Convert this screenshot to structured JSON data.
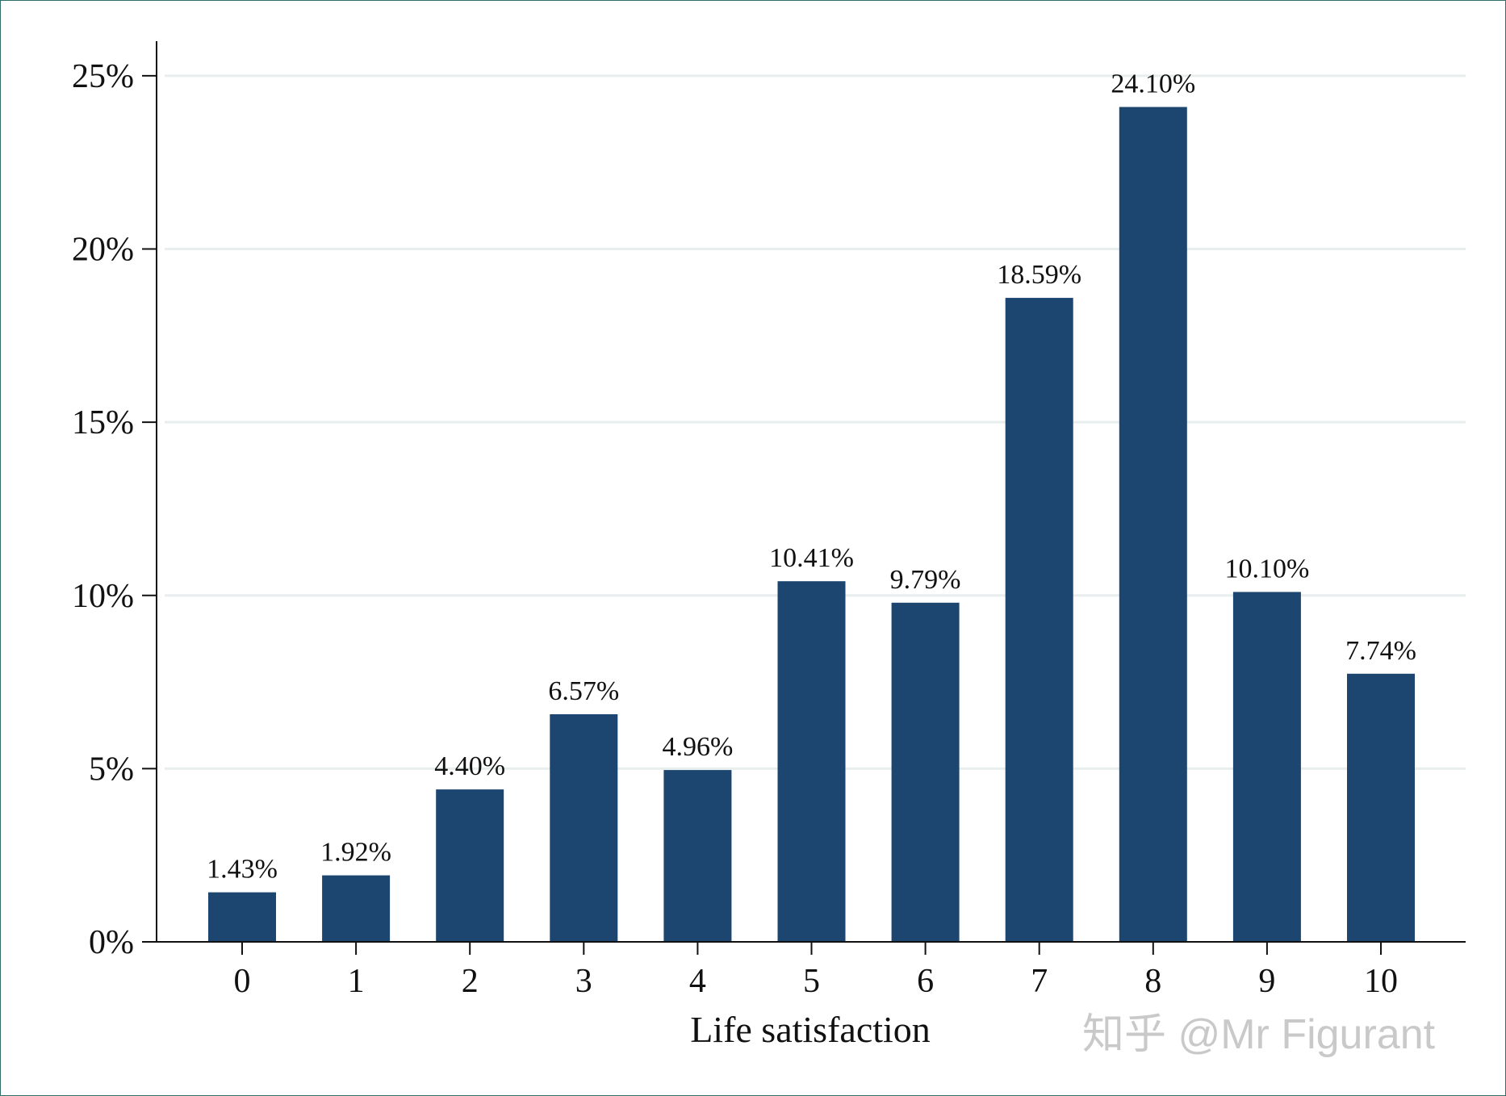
{
  "chart_data": {
    "type": "bar",
    "categories": [
      "0",
      "1",
      "2",
      "3",
      "4",
      "5",
      "6",
      "7",
      "8",
      "9",
      "10"
    ],
    "values": [
      1.43,
      1.92,
      4.4,
      6.57,
      4.96,
      10.41,
      9.79,
      18.59,
      24.1,
      10.1,
      7.74
    ],
    "data_labels": [
      "1.43%",
      "1.92%",
      "4.40%",
      "6.57%",
      "4.96%",
      "10.41%",
      "9.79%",
      "18.59%",
      "24.10%",
      "10.10%",
      "7.74%"
    ],
    "title": "",
    "xlabel": "Life satisfaction",
    "ylabel": "",
    "ylim": [
      0,
      26
    ],
    "yticks": [
      0,
      5,
      10,
      15,
      20,
      25
    ],
    "ytick_labels": [
      "0%",
      "5%",
      "10%",
      "15%",
      "20%",
      "25%"
    ],
    "grid": true,
    "bar_color": "#1c4670",
    "grid_color": "#e8eeee"
  },
  "watermark": "知乎 @Mr Figurant"
}
